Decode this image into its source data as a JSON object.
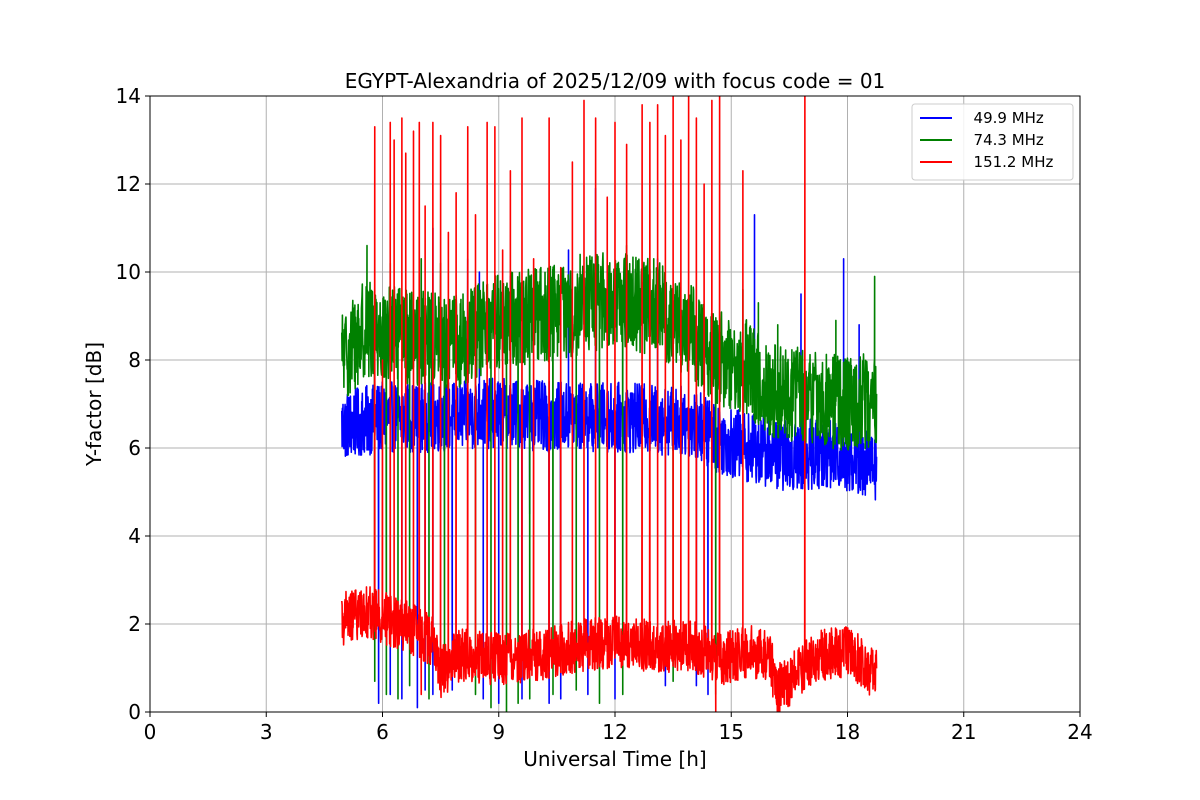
{
  "chart_data": {
    "type": "line",
    "title": "EGYPT-Alexandria of 2025/12/09 with focus code = 01",
    "xlabel": "Universal Time [h]",
    "ylabel": "Y-factor [dB]",
    "xlim": [
      0,
      24
    ],
    "ylim": [
      0,
      14
    ],
    "xticks": [
      0,
      3,
      6,
      9,
      12,
      15,
      18,
      21,
      24
    ],
    "yticks": [
      0,
      2,
      4,
      6,
      8,
      10,
      12,
      14
    ],
    "grid": true,
    "legend_position": "top-right",
    "time_range": [
      4.95,
      18.75
    ],
    "series": [
      {
        "name": "  49.9 MHz",
        "color": "#0000ff",
        "baseline": [
          [
            4.95,
            6.5
          ],
          [
            6.0,
            6.7
          ],
          [
            7.5,
            6.7
          ],
          [
            9.0,
            6.8
          ],
          [
            10.5,
            6.7
          ],
          [
            12.0,
            6.7
          ],
          [
            14.0,
            6.6
          ],
          [
            14.7,
            6.2
          ],
          [
            15.5,
            6.0
          ],
          [
            16.5,
            5.8
          ],
          [
            17.5,
            5.9
          ],
          [
            18.75,
            5.6
          ]
        ],
        "amplitude": 0.8,
        "spikes": [
          [
            7.3,
            11.0
          ],
          [
            8.2,
            10.3
          ],
          [
            8.5,
            10.0
          ],
          [
            9.3,
            9.9
          ],
          [
            10.8,
            10.5
          ],
          [
            11.5,
            11.9
          ],
          [
            13.1,
            10.3
          ],
          [
            15.6,
            11.3
          ],
          [
            16.8,
            9.5
          ],
          [
            17.9,
            10.3
          ],
          [
            18.3,
            8.8
          ]
        ],
        "dips": [
          [
            5.9,
            0.2
          ],
          [
            6.2,
            0.4
          ],
          [
            6.5,
            0.3
          ],
          [
            6.9,
            0.1
          ],
          [
            7.1,
            0.5
          ],
          [
            7.3,
            0.4
          ],
          [
            7.8,
            0.5
          ],
          [
            8.6,
            0.3
          ],
          [
            9.0,
            0.2
          ],
          [
            9.6,
            0.3
          ],
          [
            9.8,
            4.5
          ],
          [
            10.3,
            0.2
          ],
          [
            10.6,
            0.3
          ],
          [
            11.3,
            0.4
          ],
          [
            12.0,
            0.3
          ],
          [
            13.3,
            0.6
          ],
          [
            14.1,
            0.6
          ],
          [
            14.4,
            0.4
          ]
        ]
      },
      {
        "name": "  74.3 MHz",
        "color": "#008000",
        "baseline": [
          [
            4.95,
            8.0
          ],
          [
            5.5,
            8.7
          ],
          [
            6.0,
            8.6
          ],
          [
            7.0,
            8.5
          ],
          [
            8.0,
            8.4
          ],
          [
            9.0,
            8.9
          ],
          [
            10.0,
            9.0
          ],
          [
            11.0,
            9.2
          ],
          [
            12.0,
            9.4
          ],
          [
            13.0,
            9.2
          ],
          [
            14.0,
            8.6
          ],
          [
            14.7,
            8.0
          ],
          [
            15.3,
            7.9
          ],
          [
            16.0,
            7.3
          ],
          [
            17.0,
            7.2
          ],
          [
            18.0,
            7.0
          ],
          [
            18.75,
            7.1
          ]
        ],
        "amplitude": 1.1,
        "spikes": [
          [
            5.6,
            10.6
          ],
          [
            6.2,
            10.2
          ],
          [
            7.0,
            10.3
          ],
          [
            7.5,
            10.2
          ],
          [
            11.1,
            10.4
          ],
          [
            12.3,
            10.6
          ],
          [
            13.0,
            10.3
          ],
          [
            15.3,
            9.6
          ],
          [
            15.7,
            9.3
          ],
          [
            16.2,
            8.8
          ],
          [
            17.7,
            8.9
          ],
          [
            18.7,
            9.9
          ]
        ],
        "dips": [
          [
            5.8,
            0.7
          ],
          [
            6.1,
            0.4
          ],
          [
            6.4,
            0.3
          ],
          [
            6.7,
            0.6
          ],
          [
            7.2,
            0.3
          ],
          [
            7.6,
            0.8
          ],
          [
            8.4,
            0.4
          ],
          [
            8.8,
            0.1
          ],
          [
            9.2,
            0.0
          ],
          [
            9.5,
            0.2
          ],
          [
            9.8,
            0.3
          ],
          [
            10.4,
            0.4
          ],
          [
            11.0,
            0.5
          ],
          [
            11.6,
            0.2
          ],
          [
            12.2,
            0.4
          ],
          [
            13.5,
            0.7
          ],
          [
            14.6,
            0.4
          ]
        ]
      },
      {
        "name": "  151.2 MHz",
        "color": "#ff0000",
        "baseline": [
          [
            4.95,
            2.1
          ],
          [
            5.5,
            2.3
          ],
          [
            6.5,
            2.0
          ],
          [
            7.3,
            1.6
          ],
          [
            7.5,
            0.9
          ],
          [
            8.0,
            1.3
          ],
          [
            9.0,
            1.2
          ],
          [
            10.0,
            1.3
          ],
          [
            11.0,
            1.5
          ],
          [
            12.0,
            1.6
          ],
          [
            13.0,
            1.5
          ],
          [
            14.0,
            1.5
          ],
          [
            14.7,
            1.2
          ],
          [
            15.5,
            1.4
          ],
          [
            16.0,
            1.2
          ],
          [
            16.2,
            0.5
          ],
          [
            16.5,
            0.7
          ],
          [
            17.0,
            1.2
          ],
          [
            18.0,
            1.4
          ],
          [
            18.3,
            1.2
          ],
          [
            18.5,
            0.8
          ],
          [
            18.75,
            1.0
          ]
        ],
        "amplitude": 0.6,
        "spikes": [
          [
            5.8,
            13.3
          ],
          [
            6.0,
            8.0
          ],
          [
            6.2,
            13.4
          ],
          [
            6.3,
            13.0
          ],
          [
            6.5,
            13.5
          ],
          [
            6.6,
            12.7
          ],
          [
            6.8,
            13.2
          ],
          [
            6.95,
            13.4
          ],
          [
            7.1,
            11.5
          ],
          [
            7.3,
            13.4
          ],
          [
            7.5,
            13.1
          ],
          [
            7.7,
            10.9
          ],
          [
            7.9,
            11.8
          ],
          [
            8.2,
            13.3
          ],
          [
            8.4,
            11.3
          ],
          [
            8.7,
            13.4
          ],
          [
            8.9,
            13.3
          ],
          [
            9.1,
            10.5
          ],
          [
            9.3,
            12.3
          ],
          [
            9.6,
            13.5
          ],
          [
            9.9,
            10.3
          ],
          [
            10.3,
            13.5
          ],
          [
            10.6,
            10.1
          ],
          [
            10.9,
            12.5
          ],
          [
            11.2,
            13.9
          ],
          [
            11.5,
            13.5
          ],
          [
            11.8,
            11.7
          ],
          [
            12.0,
            13.4
          ],
          [
            12.3,
            12.9
          ],
          [
            12.7,
            13.8
          ],
          [
            12.9,
            13.4
          ],
          [
            13.1,
            13.8
          ],
          [
            13.3,
            13.1
          ],
          [
            13.5,
            14.0
          ],
          [
            13.7,
            13.0
          ],
          [
            13.9,
            14.0
          ],
          [
            14.1,
            13.5
          ],
          [
            14.3,
            12.0
          ],
          [
            14.5,
            13.9
          ],
          [
            14.7,
            14.0
          ],
          [
            15.3,
            12.3
          ],
          [
            16.9,
            14.0
          ]
        ],
        "dips": [
          [
            14.6,
            0.0
          ],
          [
            7.0,
            0.4
          ]
        ]
      }
    ]
  }
}
